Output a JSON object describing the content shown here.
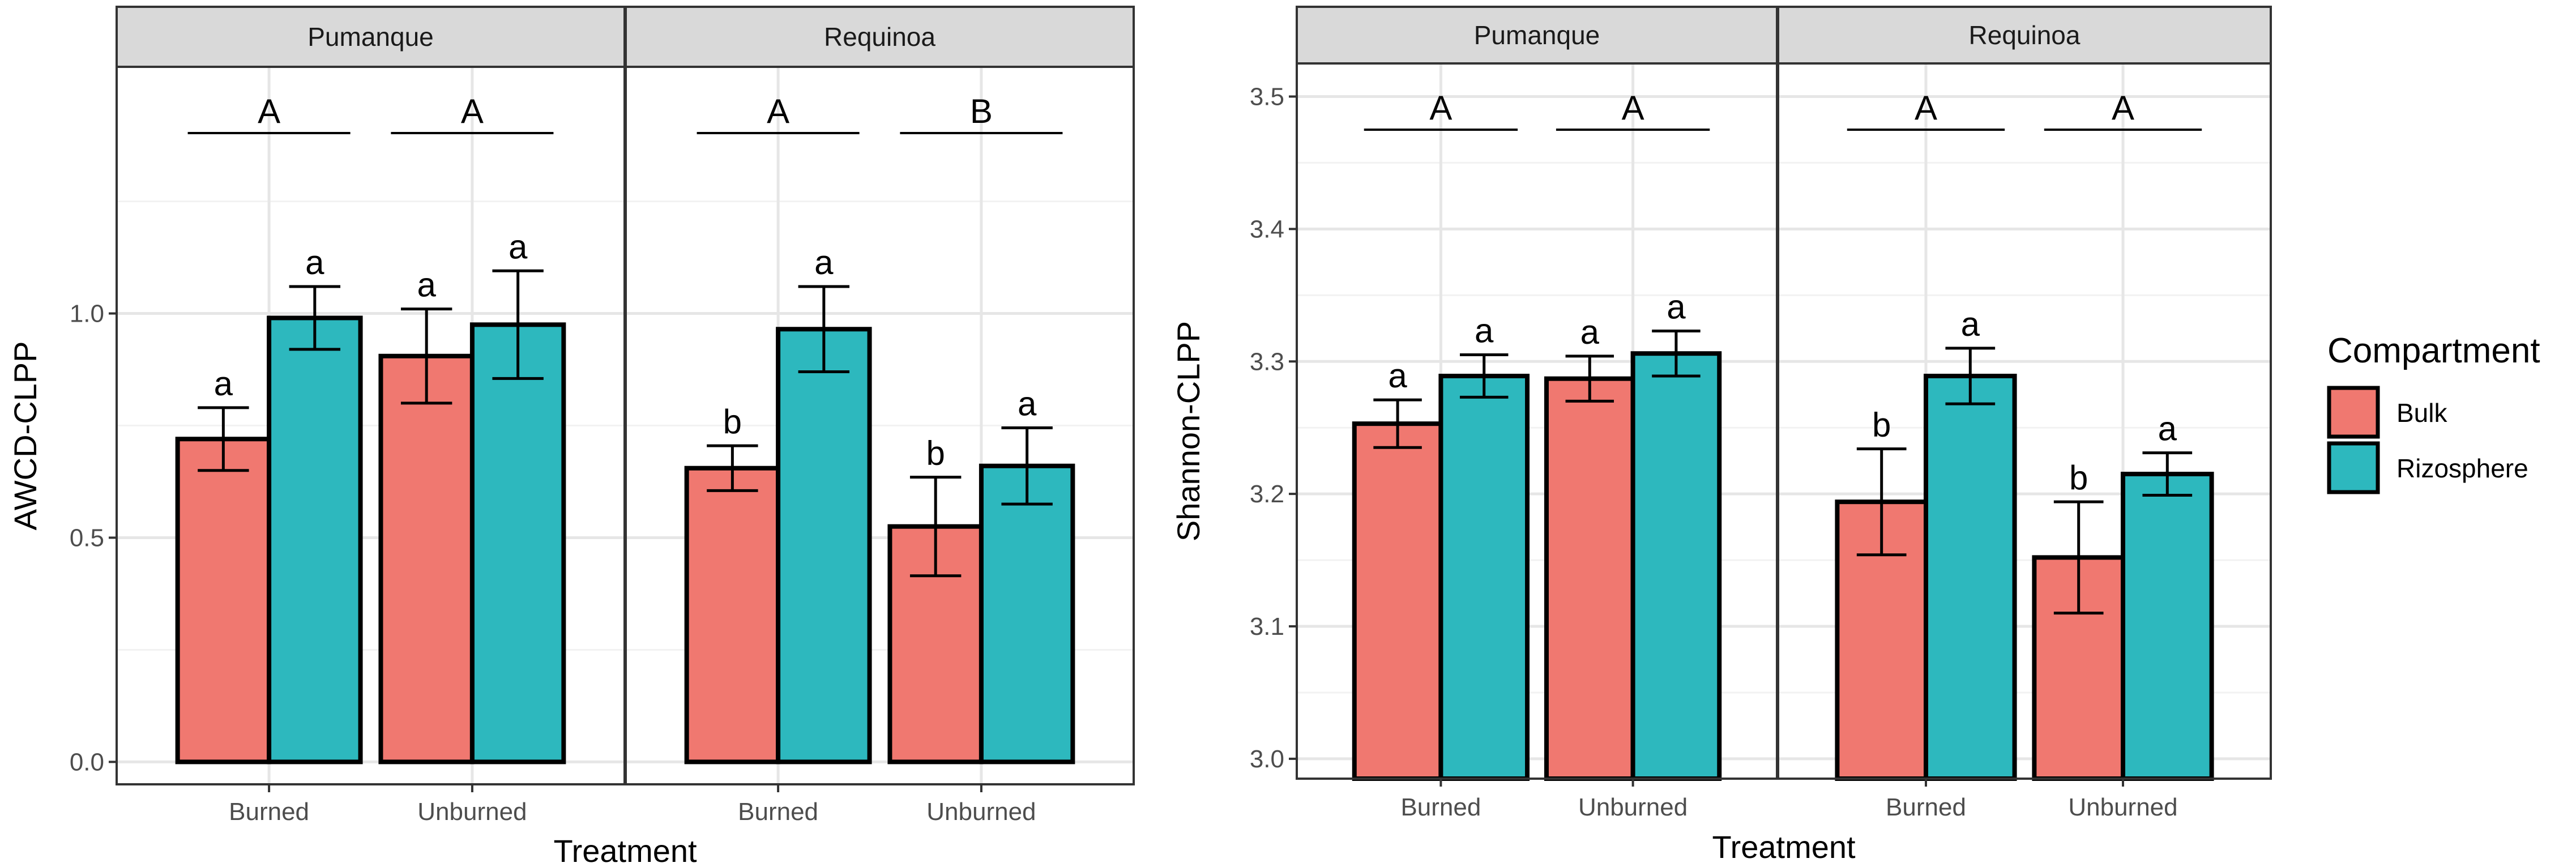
{
  "chart_data": [
    {
      "type": "bar",
      "ylabel": "AWCD-CLPP",
      "xlabel": "Treatment",
      "ylim": [
        -0.05,
        1.55
      ],
      "yticks": [
        "0.0",
        "0.5",
        "1.0"
      ],
      "categories": [
        "Burned",
        "Unburned"
      ],
      "panels": [
        {
          "title": "Pumanque",
          "bars": [
            {
              "category": "Burned",
              "group": "Bulk",
              "value": 0.72,
              "err": 0.07,
              "letter": "a"
            },
            {
              "category": "Burned",
              "group": "Rizosphere",
              "value": 0.99,
              "err": 0.07,
              "letter": "a"
            },
            {
              "category": "Unburned",
              "group": "Bulk",
              "value": 0.905,
              "err": 0.105,
              "letter": "a"
            },
            {
              "category": "Unburned",
              "group": "Rizosphere",
              "value": 0.975,
              "err": 0.12,
              "letter": "a"
            }
          ],
          "group_letters": [
            "A",
            "A"
          ]
        },
        {
          "title": "Requinoa",
          "bars": [
            {
              "category": "Burned",
              "group": "Bulk",
              "value": 0.655,
              "err": 0.05,
              "letter": "b"
            },
            {
              "category": "Burned",
              "group": "Rizosphere",
              "value": 0.965,
              "err": 0.095,
              "letter": "a"
            },
            {
              "category": "Unburned",
              "group": "Bulk",
              "value": 0.525,
              "err": 0.11,
              "letter": "b"
            },
            {
              "category": "Unburned",
              "group": "Rizosphere",
              "value": 0.66,
              "err": 0.085,
              "letter": "a"
            }
          ],
          "group_letters": [
            "A",
            "B"
          ]
        }
      ]
    },
    {
      "type": "bar",
      "ylabel": "Shannon-CLPP",
      "xlabel": "Treatment",
      "ylim": [
        2.985,
        3.525
      ],
      "yticks": [
        "3.0",
        "3.1",
        "3.2",
        "3.3",
        "3.4",
        "3.5"
      ],
      "categories": [
        "Burned",
        "Unburned"
      ],
      "panels": [
        {
          "title": "Pumanque",
          "bars": [
            {
              "category": "Burned",
              "group": "Bulk",
              "value": 3.253,
              "err": 0.018,
              "letter": "a"
            },
            {
              "category": "Burned",
              "group": "Rizosphere",
              "value": 3.289,
              "err": 0.016,
              "letter": "a"
            },
            {
              "category": "Unburned",
              "group": "Bulk",
              "value": 3.287,
              "err": 0.017,
              "letter": "a"
            },
            {
              "category": "Unburned",
              "group": "Rizosphere",
              "value": 3.306,
              "err": 0.017,
              "letter": "a"
            }
          ],
          "group_letters": [
            "A",
            "A"
          ]
        },
        {
          "title": "Requinoa",
          "bars": [
            {
              "category": "Burned",
              "group": "Bulk",
              "value": 3.194,
              "err": 0.04,
              "letter": "b"
            },
            {
              "category": "Burned",
              "group": "Rizosphere",
              "value": 3.289,
              "err": 0.021,
              "letter": "a"
            },
            {
              "category": "Unburned",
              "group": "Bulk",
              "value": 3.152,
              "err": 0.042,
              "letter": "b"
            },
            {
              "category": "Unburned",
              "group": "Rizosphere",
              "value": 3.215,
              "err": 0.016,
              "letter": "a"
            }
          ],
          "group_letters": [
            "A",
            "A"
          ]
        }
      ]
    }
  ],
  "legend": {
    "title": "Compartment",
    "items": [
      {
        "label": "Bulk",
        "color": "#F07870"
      },
      {
        "label": "Rizosphere",
        "color": "#2DB8BE"
      }
    ]
  }
}
